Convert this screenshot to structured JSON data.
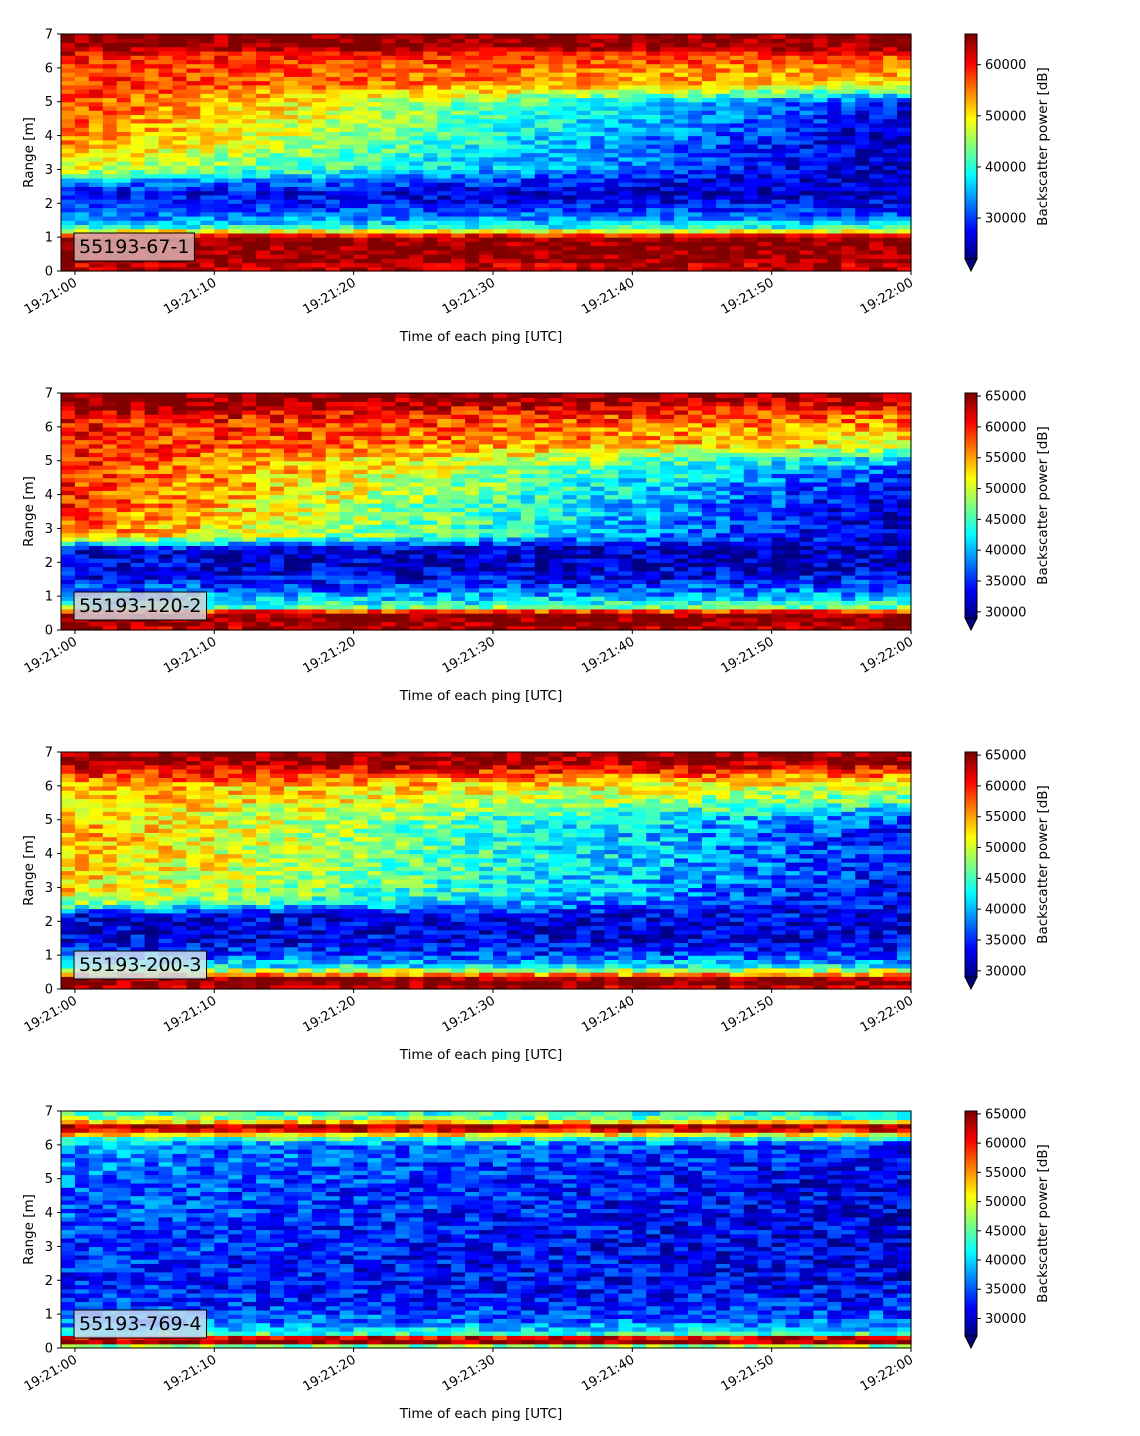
{
  "figure": {
    "colormap": "jet",
    "panel_box_color": "#000000",
    "background": "#ffffff"
  },
  "chart_data": [
    {
      "type": "heatmap",
      "sensor_label": "55193-67-1",
      "xlabel": "Time of each ping [UTC]",
      "ylabel": "Range [m]",
      "colorbar_label": "Backscatter power [dB]",
      "x_ticks": [
        "19:21:00",
        "19:21:10",
        "19:21:20",
        "19:21:30",
        "19:21:40",
        "19:21:50",
        "19:22:00"
      ],
      "x_range": [
        "19:20:59",
        "19:22:00"
      ],
      "y_ticks": [
        0,
        1,
        2,
        3,
        4,
        5,
        6,
        7
      ],
      "ylim": [
        0,
        7
      ],
      "colorbar_ticks": [
        30000,
        40000,
        50000,
        60000
      ],
      "clim": [
        22000,
        66000
      ],
      "colorbar_extend": "min",
      "label_box_color": "#d9b0b0",
      "range_profile": {
        "range_m": [
          0,
          0.15,
          0.3,
          0.6,
          1.0,
          1.15,
          1.3,
          1.6,
          2.0,
          2.3,
          2.7,
          3.0,
          3.5,
          4.0,
          4.5,
          5.0,
          5.5,
          6.0,
          6.4,
          6.6,
          7.0
        ],
        "start_power": [
          65500,
          62000,
          65500,
          65500,
          65500,
          52000,
          40000,
          33000,
          29000,
          27000,
          36000,
          48000,
          52000,
          55000,
          57000,
          58000,
          58500,
          58000,
          60000,
          65500,
          65500
        ],
        "end_power": [
          65500,
          62000,
          65500,
          65500,
          65500,
          52000,
          40000,
          33000,
          27000,
          25000,
          24000,
          24000,
          24000,
          24000,
          26000,
          28000,
          50000,
          54000,
          58000,
          65500,
          65500
        ]
      }
    },
    {
      "type": "heatmap",
      "sensor_label": "55193-120-2",
      "xlabel": "Time of each ping [UTC]",
      "ylabel": "Range [m]",
      "colorbar_label": "Backscatter power [dB]",
      "x_ticks": [
        "19:21:00",
        "19:21:10",
        "19:21:20",
        "19:21:30",
        "19:21:40",
        "19:21:50",
        "19:22:00"
      ],
      "x_range": [
        "19:20:59",
        "19:22:00"
      ],
      "y_ticks": [
        0,
        1,
        2,
        3,
        4,
        5,
        6,
        7
      ],
      "ylim": [
        0,
        7
      ],
      "colorbar_ticks": [
        30000,
        35000,
        40000,
        45000,
        50000,
        55000,
        60000,
        65000
      ],
      "clim": [
        29000,
        65500
      ],
      "colorbar_extend": "min",
      "label_box_color": "#d4d0d8",
      "range_profile": {
        "range_m": [
          0,
          0.2,
          0.5,
          0.7,
          1.0,
          1.3,
          1.6,
          2.0,
          2.4,
          2.8,
          3.2,
          3.6,
          4.0,
          4.5,
          5.0,
          5.5,
          6.0,
          6.4,
          6.7,
          7.0
        ],
        "start_power": [
          63000,
          65500,
          65500,
          45000,
          40000,
          36000,
          33000,
          32000,
          33000,
          56000,
          58000,
          59000,
          59500,
          60000,
          60000,
          60000,
          60500,
          62000,
          65500,
          65500
        ],
        "end_power": [
          63000,
          65500,
          65500,
          45000,
          40000,
          36000,
          33000,
          31000,
          31000,
          31000,
          31000,
          31000,
          32000,
          35000,
          40000,
          52000,
          55000,
          58000,
          62000,
          65500
        ]
      }
    },
    {
      "type": "heatmap",
      "sensor_label": "55193-200-3",
      "xlabel": "Time of each ping [UTC]",
      "ylabel": "Range [m]",
      "colorbar_label": "Backscatter power [dB]",
      "x_ticks": [
        "19:21:00",
        "19:21:10",
        "19:21:20",
        "19:21:30",
        "19:21:40",
        "19:21:50",
        "19:22:00"
      ],
      "x_range": [
        "19:20:59",
        "19:22:00"
      ],
      "y_ticks": [
        0,
        1,
        2,
        3,
        4,
        5,
        6,
        7
      ],
      "ylim": [
        0,
        7
      ],
      "colorbar_ticks": [
        30000,
        35000,
        40000,
        45000,
        50000,
        55000,
        60000,
        65000
      ],
      "clim": [
        29000,
        65500
      ],
      "colorbar_extend": "min",
      "label_box_color": "#cfe6ee",
      "range_profile": {
        "range_m": [
          0,
          0.15,
          0.3,
          0.45,
          0.7,
          1.0,
          1.4,
          1.8,
          2.2,
          2.6,
          3.0,
          3.5,
          4.0,
          4.5,
          5.0,
          5.5,
          6.0,
          6.4,
          6.7,
          7.0
        ],
        "start_power": [
          63000,
          65500,
          65500,
          55000,
          42000,
          36000,
          33000,
          32000,
          33000,
          50000,
          53000,
          54000,
          55000,
          55000,
          54000,
          54000,
          55000,
          60000,
          65500,
          65500
        ],
        "end_power": [
          63000,
          65500,
          65500,
          55000,
          42000,
          36000,
          33000,
          32000,
          33000,
          33000,
          33000,
          34000,
          34000,
          34000,
          36000,
          45000,
          50000,
          58000,
          64000,
          65500
        ]
      }
    },
    {
      "type": "heatmap",
      "sensor_label": "55193-769-4",
      "xlabel": "Time of each ping [UTC]",
      "ylabel": "Range [m]",
      "colorbar_label": "Backscatter power [dB]",
      "x_ticks": [
        "19:21:00",
        "19:21:10",
        "19:21:20",
        "19:21:30",
        "19:21:40",
        "19:21:50",
        "19:22:00"
      ],
      "x_range": [
        "19:20:59",
        "19:22:00"
      ],
      "y_ticks": [
        0,
        1,
        2,
        3,
        4,
        5,
        6,
        7
      ],
      "ylim": [
        0,
        7
      ],
      "colorbar_ticks": [
        30000,
        35000,
        40000,
        45000,
        50000,
        55000,
        60000,
        65000
      ],
      "clim": [
        27000,
        65500
      ],
      "colorbar_extend": "min",
      "label_box_color": "#c6d8f2",
      "range_profile": {
        "range_m": [
          0,
          0.15,
          0.3,
          0.45,
          0.8,
          1.2,
          2.0,
          3.0,
          4.0,
          5.0,
          6.0,
          6.2,
          6.4,
          6.55,
          6.7,
          6.85,
          7.0
        ],
        "start_power": [
          33000,
          65500,
          63000,
          42000,
          36000,
          34000,
          33000,
          34000,
          35000,
          36000,
          37000,
          45000,
          60000,
          65500,
          52000,
          45000,
          44000
        ],
        "end_power": [
          33000,
          65500,
          63000,
          42000,
          36000,
          33000,
          31000,
          30500,
          30500,
          31000,
          33000,
          42000,
          58000,
          65500,
          50000,
          43000,
          42000
        ]
      }
    }
  ]
}
